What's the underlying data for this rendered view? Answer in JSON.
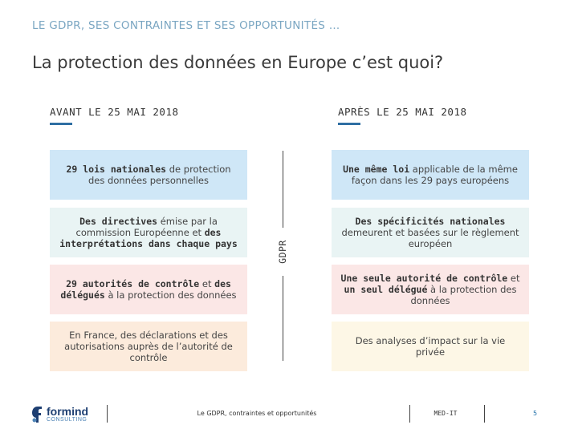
{
  "header": {
    "kicker": "LE GDPR, SES CONTRAINTES ET SES OPPORTUNITÉS …",
    "title": "La protection des données en Europe c’est quoi?"
  },
  "columns": {
    "before": {
      "heading": "AVANT LE 25 MAI 2018"
    },
    "after": {
      "heading": "APRÈS LE 25 MAI 2018"
    }
  },
  "divider_label": "GDPR",
  "before_items": [
    {
      "bold": "29 lois nationales",
      "rest": " de protection des données personnelles"
    },
    {
      "p1": "Des directives",
      "p2": " émise par la commission Européenne et ",
      "p3": "des interprétations dans chaque pays"
    },
    {
      "p1": "29 autorités de contrôle",
      "p2": " et ",
      "p3": "des délégués",
      "p4": " à la protection des données"
    },
    {
      "text": "En France, des déclarations et des autorisations auprès de l’autorité de contrôle"
    }
  ],
  "after_items": [
    {
      "bold": "Une même loi",
      "rest": " applicable de la même façon dans les 29 pays européens"
    },
    {
      "bold": "Des spécificités nationales",
      "rest": " demeurent et basées sur le règlement européen"
    },
    {
      "p1": "Une seule autorité de contrôle",
      "p2": " et ",
      "p3": "un seul délégué",
      "p4": " à la protection des données"
    },
    {
      "text": "Des analyses d’impact sur la vie privée"
    }
  ],
  "footer": {
    "logo_name": "formind",
    "logo_sub": "CONSULTING",
    "center": "Le GDPR, contraintes et opportunités",
    "right": "MED-IT",
    "page": "5"
  },
  "colors": {
    "accent": "#2f6fa3",
    "kicker": "#7aa6c2",
    "blue_box": "#cfe7f7",
    "pink_box": "#fbe7e6"
  }
}
